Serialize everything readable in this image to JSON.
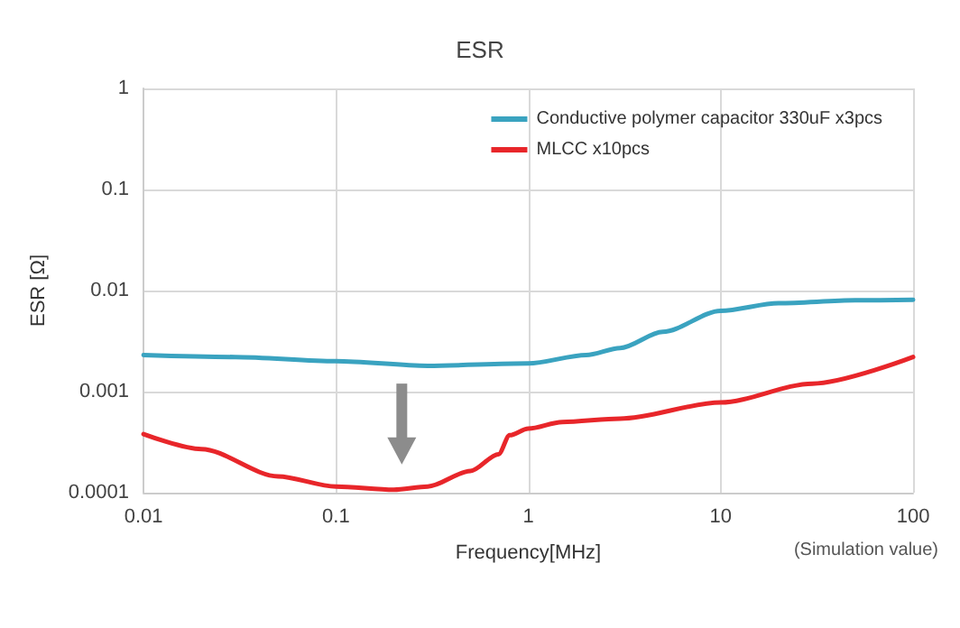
{
  "chart_data": {
    "type": "line",
    "title": "ESR",
    "xlabel": "Frequency[MHz]",
    "ylabel": "ESR [Ω]",
    "log": "xy",
    "grid": true,
    "legend": "top right",
    "marker": "none",
    "line_style": "solid",
    "xlim": [
      0.01,
      100
    ],
    "xticks": [
      0.01,
      0.1,
      1,
      10,
      100
    ],
    "ylim": [
      0.0001,
      1
    ],
    "yticks": [
      0.0001,
      0.001,
      0.01,
      0.1,
      1
    ],
    "annotations": [
      "(Simulation value)"
    ],
    "series": [
      {
        "name": "Conductive polymer capacitor 330uF x3pcs",
        "color": "#3aa3c0",
        "x": [
          0.01,
          0.03,
          0.1,
          0.3,
          1,
          2,
          3,
          5,
          10,
          20,
          50,
          100
        ],
        "values": [
          0.0023,
          0.0022,
          0.002,
          0.0018,
          0.0019,
          0.0023,
          0.0027,
          0.0039,
          0.0063,
          0.0075,
          0.008,
          0.0081
        ]
      },
      {
        "name": "MLCC x10pcs",
        "color": "#e8262a",
        "x": [
          0.01,
          0.02,
          0.05,
          0.1,
          0.2,
          0.3,
          0.5,
          0.7,
          0.8,
          1,
          1.5,
          3,
          10,
          30,
          100
        ],
        "values": [
          0.00038,
          0.00027,
          0.000145,
          0.000115,
          0.000107,
          0.000115,
          0.000164,
          0.00024,
          0.00037,
          0.00043,
          0.0005,
          0.00054,
          0.00078,
          0.0012,
          0.0022
        ]
      }
    ]
  }
}
